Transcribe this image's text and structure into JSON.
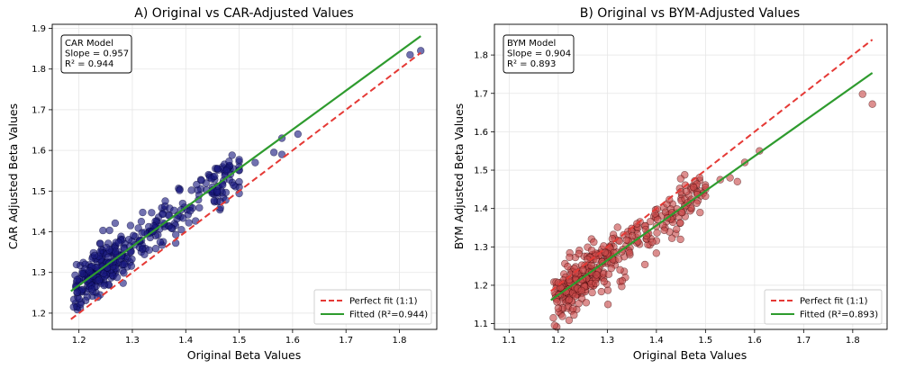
{
  "chart_data": [
    {
      "type": "scatter",
      "title": "A) Original vs CAR-Adjusted Values",
      "xlabel": "Original Beta Values",
      "ylabel": "CAR Adjusted Beta Values",
      "xlim": [
        1.15,
        1.87
      ],
      "ylim": [
        1.16,
        1.91
      ],
      "xticks": [
        1.2,
        1.3,
        1.4,
        1.5,
        1.6,
        1.7,
        1.8
      ],
      "xtick_labels": [
        "1.2",
        "1.3",
        "1.4",
        "1.5",
        "1.6",
        "1.7",
        "1.8"
      ],
      "yticks": [
        1.2,
        1.3,
        1.4,
        1.5,
        1.6,
        1.7,
        1.8,
        1.9
      ],
      "ytick_labels": [
        "1.2",
        "1.3",
        "1.4",
        "1.5",
        "1.6",
        "1.7",
        "1.8",
        "1.9"
      ],
      "grid": true,
      "point_color": "#1a1a80",
      "point_edge": "#000033",
      "slope": 0.957,
      "intercept": 0.12,
      "x_range": [
        1.185,
        1.84
      ],
      "annotation": [
        "CAR Model",
        "Slope = 0.957",
        "R² = 0.944"
      ],
      "legend_position": "bottom-right",
      "legend": [
        {
          "label": "Perfect fit (1:1)",
          "color": "#e53935",
          "style": "dashed"
        },
        {
          "label": "Fitted (R²=0.944)",
          "color": "#2e9b2e",
          "style": "solid"
        }
      ],
      "highlight_points": [
        [
          1.84,
          1.845
        ],
        [
          1.82,
          1.835
        ],
        [
          1.61,
          1.64
        ],
        [
          1.58,
          1.63
        ],
        [
          1.565,
          1.595
        ],
        [
          1.58,
          1.59
        ],
        [
          1.53,
          1.57
        ],
        [
          1.5,
          1.56
        ],
        [
          1.19,
          1.215
        ],
        [
          1.2,
          1.235
        ]
      ],
      "noise": 0.03,
      "n_points": 380,
      "seed": 11
    },
    {
      "type": "scatter",
      "title": "B) Original vs BYM-Adjusted Values",
      "xlabel": "Original Beta Values",
      "ylabel": "BYM Adjusted Beta Values",
      "xlim": [
        1.07,
        1.87
      ],
      "ylim": [
        1.085,
        1.88
      ],
      "xticks": [
        1.1,
        1.2,
        1.3,
        1.4,
        1.5,
        1.6,
        1.7,
        1.8
      ],
      "xtick_labels": [
        "1.1",
        "1.2",
        "1.3",
        "1.4",
        "1.5",
        "1.6",
        "1.7",
        "1.8"
      ],
      "yticks": [
        1.1,
        1.2,
        1.3,
        1.4,
        1.5,
        1.6,
        1.7,
        1.8
      ],
      "ytick_labels": [
        "1.1",
        "1.2",
        "1.3",
        "1.4",
        "1.5",
        "1.6",
        "1.7",
        "1.8"
      ],
      "grid": true,
      "point_color": "#c84a4a",
      "point_edge": "#330000",
      "slope": 0.904,
      "intercept": 0.09,
      "x_range": [
        1.185,
        1.84
      ],
      "annotation": [
        "BYM Model",
        "Slope = 0.904",
        "R² = 0.893"
      ],
      "legend_position": "bottom-right",
      "legend": [
        {
          "label": "Perfect fit (1:1)",
          "color": "#e53935",
          "style": "dashed"
        },
        {
          "label": "Fitted (R²=0.893)",
          "color": "#2e9b2e",
          "style": "solid"
        }
      ],
      "highlight_points": [
        [
          1.84,
          1.672
        ],
        [
          1.82,
          1.698
        ],
        [
          1.61,
          1.55
        ],
        [
          1.58,
          1.52
        ],
        [
          1.565,
          1.47
        ],
        [
          1.55,
          1.48
        ],
        [
          1.53,
          1.475
        ],
        [
          1.19,
          1.115
        ],
        [
          1.2,
          1.14
        ]
      ],
      "noise": 0.032,
      "n_points": 380,
      "seed": 23
    }
  ]
}
